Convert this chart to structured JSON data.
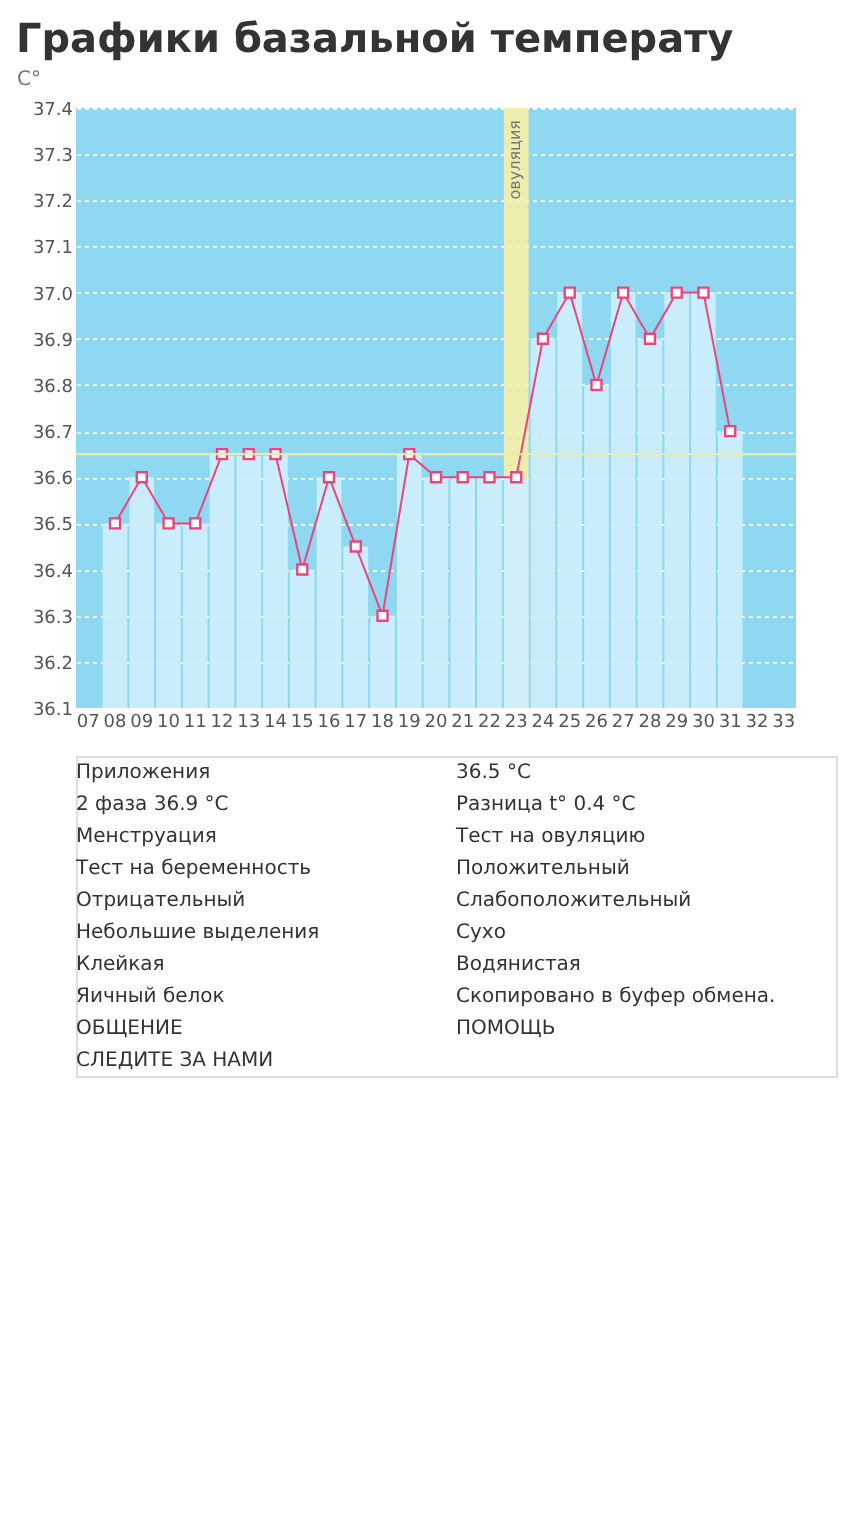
{
  "chart_data": {
    "type": "bar",
    "title": "Графики базальной температу",
    "ylabel": "C°",
    "categories": [
      "07",
      "08",
      "09",
      "10",
      "11",
      "12",
      "13",
      "14",
      "15",
      "16",
      "17",
      "18",
      "19",
      "20",
      "21",
      "22",
      "23",
      "24",
      "25",
      "26",
      "27",
      "28",
      "29",
      "30",
      "31",
      "32",
      "33"
    ],
    "series": [
      {
        "type": "bar",
        "color": "#cdeefb",
        "values": [
          null,
          36.5,
          36.6,
          36.5,
          36.5,
          36.65,
          36.65,
          36.65,
          36.4,
          36.6,
          36.45,
          36.3,
          36.65,
          36.6,
          36.6,
          36.6,
          36.6,
          36.9,
          37.0,
          36.8,
          37.0,
          36.9,
          37.0,
          37.0,
          36.7,
          null,
          null
        ]
      },
      {
        "type": "line",
        "color": "#e8467c",
        "values": [
          null,
          36.5,
          36.6,
          36.5,
          36.5,
          36.65,
          36.65,
          36.65,
          36.4,
          36.6,
          36.45,
          36.3,
          36.65,
          36.6,
          36.6,
          36.6,
          36.6,
          36.9,
          37.0,
          36.8,
          37.0,
          36.9,
          37.0,
          37.0,
          36.7,
          null,
          null
        ]
      }
    ],
    "ylim": [
      36.1,
      37.4
    ],
    "yticks": [
      36.1,
      36.2,
      36.3,
      36.4,
      36.5,
      36.6,
      36.7,
      36.8,
      36.9,
      {
        "value": 37,
        "label": "37.0"
      },
      37.1,
      37.2,
      37.3,
      37.4
    ],
    "grid": "y",
    "marker": "square",
    "line_style": "solid",
    "ref_lines": [
      {
        "axis": "y",
        "value": 36.65,
        "label": null,
        "color": "#f2ea9a"
      }
    ],
    "bands": [
      {
        "axis": "x",
        "from": "23",
        "to": "23",
        "label": "овуляция",
        "color": "#f7f0a8"
      }
    ],
    "annotations": [
      "Приложения",
      "36.5 °C",
      "2 фаза 36.9 °C",
      "Разница t° 0.4 °C",
      "Менструация",
      "Тест на овуляцию",
      "Тест на беременность",
      "Положительный",
      "Отрицательный",
      "Слабоположительный",
      "Небольшие выделения",
      "Сухо",
      "Клейкая",
      "Водянистая",
      "Яичный белок",
      "Скопировано в буфер обмена.",
      "ОБЩЕНИЕ",
      "ПОМОЩЬ",
      "СЛЕДИТЕ ЗА НАМИ"
    ]
  }
}
